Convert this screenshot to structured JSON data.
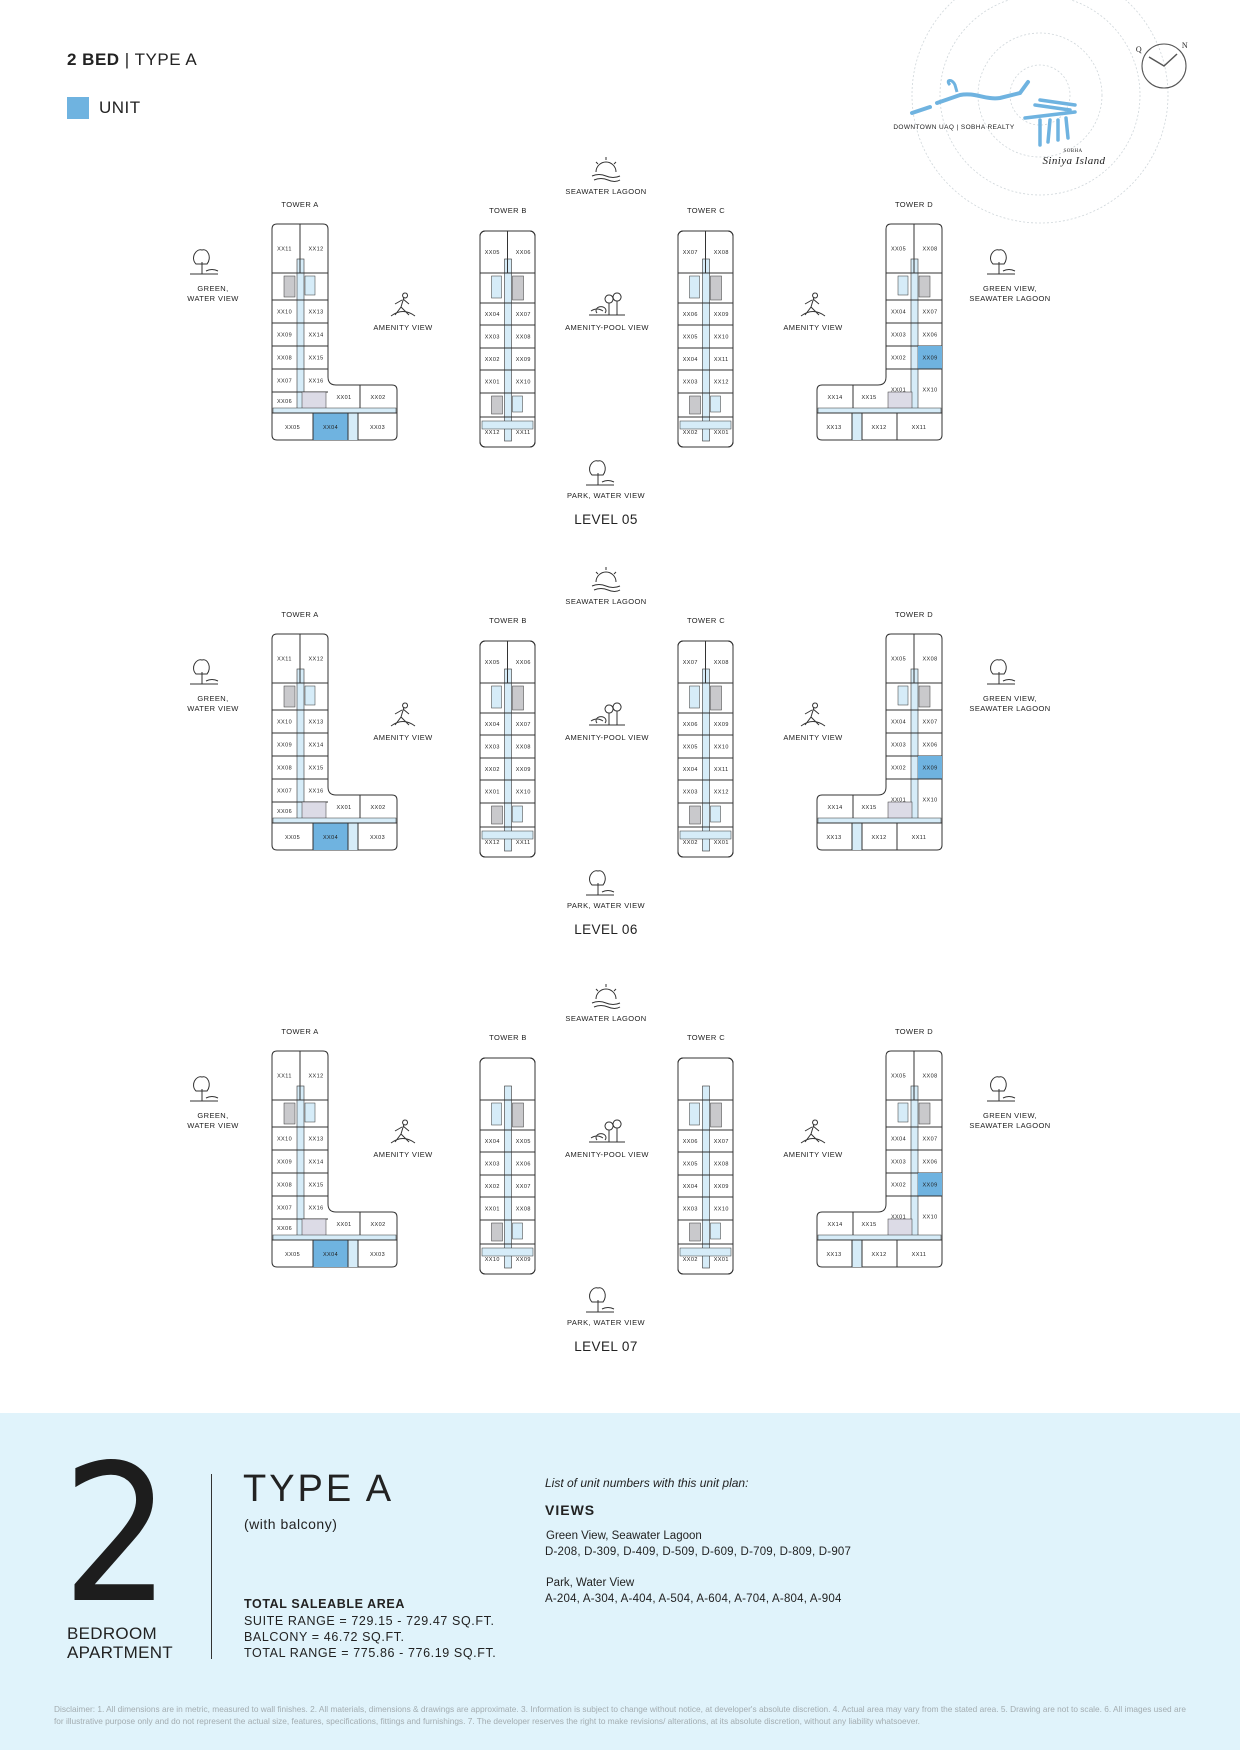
{
  "header": {
    "bed": "2 BED",
    "separator": " | ",
    "type": "TYPE A"
  },
  "legend": {
    "label": "UNIT",
    "color": "#6fb3e0"
  },
  "logo": {
    "location": "DOWNTOWN UAQ | SOBHA REALTY",
    "brand": "SOBHA",
    "project": "Siniya Island",
    "color": "#6fb3e0"
  },
  "compass": {
    "left_letter": "Q",
    "right_letter": "N"
  },
  "colors": {
    "corridor": "#d6ecf8",
    "core_dark": "#c9c9cc",
    "core_light": "#dcdbe6",
    "highlight": "#6fb3e0",
    "panel": "#e0f3fb"
  },
  "views": {
    "top": "SEAWATER LAGOON",
    "bottom": "PARK, WATER VIEW",
    "left": [
      "GREEN,",
      "WATER VIEW"
    ],
    "amenity_left": "AMENITY VIEW",
    "center": "AMENITY-POOL VIEW",
    "amenity_right": "AMENITY VIEW",
    "right": [
      "GREEN VIEW,",
      "SEAWATER LAGOON"
    ]
  },
  "levels": [
    {
      "label": "LEVEL 05",
      "tower_a": {
        "name": "TOWER A",
        "rows": [
          [
            "XX11",
            "XX12"
          ],
          "core",
          [
            "XX10",
            "XX13"
          ],
          [
            "XX09",
            "XX14"
          ],
          [
            "XX08",
            "XX15"
          ],
          [
            "XX07",
            "XX16"
          ],
          [
            "XX06",
            ""
          ]
        ],
        "wing": [
          "XX01",
          "XX02"
        ],
        "bottom": [
          "XX05",
          "XX04",
          "XX03"
        ],
        "highlight": "XX04"
      },
      "tower_b": {
        "name": "TOWER B",
        "rows": [
          [
            "XX05",
            "XX06"
          ],
          "core",
          [
            "XX04",
            "XX07"
          ],
          [
            "XX03",
            "XX08"
          ],
          [
            "XX02",
            "XX09"
          ],
          [
            "XX01",
            "XX10"
          ],
          "core",
          [
            "XX12",
            "XX11"
          ]
        ]
      },
      "tower_c": {
        "name": "TOWER C",
        "rows": [
          [
            "XX07",
            "XX08"
          ],
          "core",
          [
            "XX06",
            "XX09"
          ],
          [
            "XX05",
            "XX10"
          ],
          [
            "XX04",
            "XX11"
          ],
          [
            "XX03",
            "XX12"
          ],
          "core",
          [
            "XX02",
            "XX01"
          ]
        ]
      },
      "tower_d": {
        "name": "TOWER D",
        "rows": [
          [
            "XX05",
            "XX08"
          ],
          "core",
          [
            "XX04",
            "XX07"
          ],
          [
            "XX03",
            "XX06"
          ],
          [
            "XX02",
            "XX09"
          ],
          [
            "XX01",
            "XX10"
          ]
        ],
        "wing": [
          "XX14",
          "XX15"
        ],
        "bottom": [
          "XX13",
          "XX12",
          "XX11"
        ],
        "highlight": "XX09"
      }
    },
    {
      "label": "LEVEL 06",
      "tower_a": {
        "name": "TOWER A",
        "rows": [
          [
            "XX11",
            "XX12"
          ],
          "core",
          [
            "XX10",
            "XX13"
          ],
          [
            "XX09",
            "XX14"
          ],
          [
            "XX08",
            "XX15"
          ],
          [
            "XX07",
            "XX16"
          ],
          [
            "XX06",
            ""
          ]
        ],
        "wing": [
          "XX01",
          "XX02"
        ],
        "bottom": [
          "XX05",
          "XX04",
          "XX03"
        ],
        "highlight": "XX04"
      },
      "tower_b": {
        "name": "TOWER B",
        "rows": [
          [
            "XX05",
            "XX06"
          ],
          "core",
          [
            "XX04",
            "XX07"
          ],
          [
            "XX03",
            "XX08"
          ],
          [
            "XX02",
            "XX09"
          ],
          [
            "XX01",
            "XX10"
          ],
          "core",
          [
            "XX12",
            "XX11"
          ]
        ]
      },
      "tower_c": {
        "name": "TOWER C",
        "rows": [
          [
            "XX07",
            "XX08"
          ],
          "core",
          [
            "XX06",
            "XX09"
          ],
          [
            "XX05",
            "XX10"
          ],
          [
            "XX04",
            "XX11"
          ],
          [
            "XX03",
            "XX12"
          ],
          "core",
          [
            "XX02",
            "XX01"
          ]
        ]
      },
      "tower_d": {
        "name": "TOWER D",
        "rows": [
          [
            "XX05",
            "XX08"
          ],
          "core",
          [
            "XX04",
            "XX07"
          ],
          [
            "XX03",
            "XX06"
          ],
          [
            "XX02",
            "XX09"
          ],
          [
            "XX01",
            "XX10"
          ]
        ],
        "wing": [
          "XX14",
          "XX15"
        ],
        "bottom": [
          "XX13",
          "XX12",
          "XX11"
        ],
        "highlight": "XX09"
      }
    },
    {
      "label": "LEVEL 07",
      "tower_a": {
        "name": "TOWER A",
        "rows": [
          [
            "XX11",
            "XX12"
          ],
          "core",
          [
            "XX10",
            "XX13"
          ],
          [
            "XX09",
            "XX14"
          ],
          [
            "XX08",
            "XX15"
          ],
          [
            "XX07",
            "XX16"
          ],
          [
            "XX06",
            ""
          ]
        ],
        "wing": [
          "XX01",
          "XX02"
        ],
        "bottom": [
          "XX05",
          "XX04",
          "XX03"
        ],
        "highlight": "XX04"
      },
      "tower_b": {
        "name": "TOWER B",
        "rows": [
          [
            "",
            ""
          ],
          "core",
          [
            "XX04",
            "XX05"
          ],
          [
            "XX03",
            "XX06"
          ],
          [
            "XX02",
            "XX07"
          ],
          [
            "XX01",
            "XX08"
          ],
          "core",
          [
            "XX10",
            "XX09"
          ]
        ]
      },
      "tower_c": {
        "name": "TOWER C",
        "rows": [
          [
            "",
            ""
          ],
          "core",
          [
            "XX06",
            "XX07"
          ],
          [
            "XX05",
            "XX08"
          ],
          [
            "XX04",
            "XX09"
          ],
          [
            "XX03",
            "XX10"
          ],
          "core",
          [
            "XX02",
            "XX01"
          ]
        ]
      },
      "tower_d": {
        "name": "TOWER D",
        "rows": [
          [
            "XX05",
            "XX08"
          ],
          "core",
          [
            "XX04",
            "XX07"
          ],
          [
            "XX03",
            "XX06"
          ],
          [
            "XX02",
            "XX09"
          ],
          [
            "XX01",
            "XX10"
          ]
        ],
        "wing": [
          "XX14",
          "XX15"
        ],
        "bottom": [
          "XX13",
          "XX12",
          "XX11"
        ],
        "highlight": "XX09"
      }
    }
  ],
  "summary": {
    "bedrooms": "2",
    "bedroom_label": [
      "BEDROOM",
      "APARTMENT"
    ],
    "type": "TYPE A",
    "subtitle": "(with balcony)",
    "area_title": "TOTAL SALEABLE AREA",
    "suite_range": "SUITE RANGE = 729.15 - 729.47 SQ.FT.",
    "balcony": "BALCONY = 46.72 SQ.FT.",
    "total_range": "TOTAL RANGE = 775.86 - 776.19 SQ.FT.",
    "list_title": "List of unit numbers with this unit plan:",
    "views_title": "VIEWS",
    "view_groups": [
      {
        "name": "Green View, Seawater Lagoon",
        "units": "D-208, D-309, D-409, D-509, D-609, D-709, D-809, D-907"
      },
      {
        "name": "Park, Water View",
        "units": "A-204, A-304, A-404, A-504, A-604, A-704, A-804, A-904"
      }
    ]
  },
  "disclaimer": "Disclaimer: 1. All dimensions are in metric, measured to wall finishes. 2. All materials, dimensions & drawings are approximate. 3. Information is subject to change without notice, at developer's absolute discretion. 4. Actual area may vary from the stated area. 5. Drawing are not to scale. 6. All images used are for illustrative purpose only and do not represent the actual size, features, specifications, fittings and furnishings. 7. The developer reserves the right to make revisions/ alterations, at its absolute discretion, without any liability whatsoever."
}
